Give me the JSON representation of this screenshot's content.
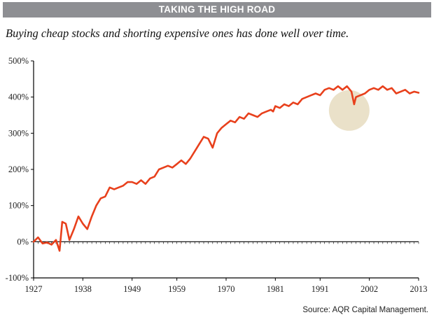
{
  "header": {
    "title": "TAKING THE HIGH ROAD",
    "subtitle": "Buying cheap stocks and shorting expensive ones has done well over time."
  },
  "footer": {
    "source": "Source: AQR Capital Management."
  },
  "colors": {
    "line": "#e8401c",
    "highlight": "#e6dcc0",
    "title_bar": "#8e8f93"
  },
  "chart_data": {
    "type": "line",
    "title": "TAKING THE HIGH ROAD",
    "subtitle": "Buying cheap stocks and shorting expensive ones has done well over time.",
    "xlabel": "",
    "ylabel": "",
    "xlim": [
      1927,
      2013
    ],
    "ylim": [
      -100,
      500
    ],
    "x_ticks": [
      "1927",
      "1938",
      "1949",
      "1959",
      "1970",
      "1981",
      "1991",
      "2002",
      "2013"
    ],
    "y_ticks": [
      "500%",
      "400%",
      "300%",
      "200%",
      "100%",
      "0%",
      "-100%"
    ],
    "y_tick_values": [
      500,
      400,
      300,
      200,
      100,
      0,
      -100
    ],
    "highlight": {
      "label": "",
      "center": [
        1997.5,
        363
      ],
      "note": "shaded circle around dip"
    },
    "series": [
      {
        "values": [
          [
            1927,
            0
          ],
          [
            1928,
            12
          ],
          [
            1929,
            -5
          ],
          [
            1930,
            -2
          ],
          [
            1931,
            -8
          ],
          [
            1932,
            5
          ],
          [
            1932.8,
            -25
          ],
          [
            1933.4,
            55
          ],
          [
            1934.2,
            50
          ],
          [
            1935,
            5
          ],
          [
            1936,
            35
          ],
          [
            1937,
            70
          ],
          [
            1938,
            50
          ],
          [
            1939,
            35
          ],
          [
            1940,
            70
          ],
          [
            1941,
            100
          ],
          [
            1942,
            120
          ],
          [
            1943,
            125
          ],
          [
            1944,
            150
          ],
          [
            1945,
            145
          ],
          [
            1946,
            150
          ],
          [
            1947,
            155
          ],
          [
            1948,
            165
          ],
          [
            1949,
            165
          ],
          [
            1950,
            160
          ],
          [
            1951,
            170
          ],
          [
            1952,
            160
          ],
          [
            1953,
            175
          ],
          [
            1954,
            180
          ],
          [
            1955,
            200
          ],
          [
            1956,
            205
          ],
          [
            1957,
            210
          ],
          [
            1958,
            205
          ],
          [
            1959,
            215
          ],
          [
            1960,
            225
          ],
          [
            1961,
            215
          ],
          [
            1962,
            230
          ],
          [
            1963,
            250
          ],
          [
            1964,
            270
          ],
          [
            1965,
            290
          ],
          [
            1966,
            285
          ],
          [
            1967,
            260
          ],
          [
            1968,
            300
          ],
          [
            1969,
            315
          ],
          [
            1970,
            325
          ],
          [
            1971,
            335
          ],
          [
            1972,
            330
          ],
          [
            1973,
            345
          ],
          [
            1974,
            340
          ],
          [
            1975,
            355
          ],
          [
            1976,
            350
          ],
          [
            1977,
            345
          ],
          [
            1978,
            355
          ],
          [
            1979,
            360
          ],
          [
            1980,
            365
          ],
          [
            1980.5,
            360
          ],
          [
            1981,
            375
          ],
          [
            1982,
            370
          ],
          [
            1983,
            380
          ],
          [
            1984,
            375
          ],
          [
            1985,
            385
          ],
          [
            1986,
            380
          ],
          [
            1987,
            395
          ],
          [
            1988,
            400
          ],
          [
            1989,
            405
          ],
          [
            1990,
            410
          ],
          [
            1991,
            405
          ],
          [
            1992,
            420
          ],
          [
            1993,
            425
          ],
          [
            1994,
            420
          ],
          [
            1995,
            430
          ],
          [
            1996,
            420
          ],
          [
            1997,
            430
          ],
          [
            1998,
            415
          ],
          [
            1998.6,
            380
          ],
          [
            1999,
            400
          ],
          [
            2000,
            405
          ],
          [
            2001,
            410
          ],
          [
            2002,
            420
          ],
          [
            2003,
            425
          ],
          [
            2004,
            420
          ],
          [
            2005,
            430
          ],
          [
            2006,
            420
          ],
          [
            2007,
            425
          ],
          [
            2008,
            410
          ],
          [
            2009,
            415
          ],
          [
            2010,
            420
          ],
          [
            2011,
            410
          ],
          [
            2012,
            415
          ],
          [
            2013,
            412
          ]
        ]
      }
    ]
  }
}
